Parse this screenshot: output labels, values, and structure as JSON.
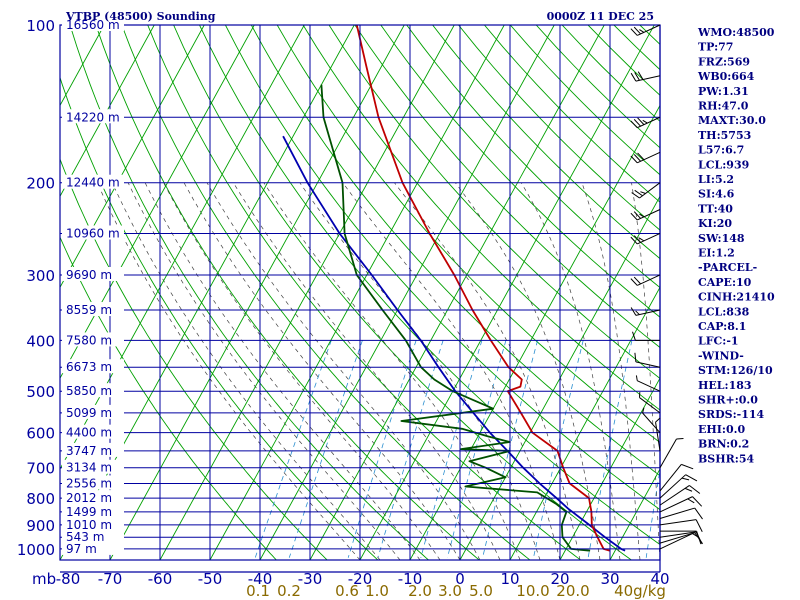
{
  "header": {
    "title": "VTBP (48500) Sounding",
    "time": "0000Z 11 DEC 25"
  },
  "indices": [
    "WMO:48500",
    "TP:77",
    "FRZ:569",
    "WB0:664",
    "PW:1.31",
    "RH:47.0",
    "MAXT:30.0",
    "TH:5753",
    "L57:6.7",
    "LCL:939",
    "LI:5.2",
    "SI:4.6",
    "TT:40",
    "KI:20",
    "SW:148",
    "EI:1.2",
    "-PARCEL-",
    "CAPE:10",
    "CINH:21410",
    "LCL:838",
    "CAP:8.1",
    "LFC:-1",
    "-WIND-",
    "STM:126/10",
    "HEL:183",
    "SHR+:0.0",
    "SRDS:-114",
    "EHI:0.0",
    "BRN:0.2",
    "BSHR:54"
  ],
  "colors": {
    "frame": "#0000a0",
    "dry_adiabat": "#00a000",
    "moist_adiabat": "#404040",
    "mixing_ratio": "#2a8fd0",
    "temperature": "#c00000",
    "dewpoint": "#005000",
    "parcel": "#0000b0",
    "wind": "#000000"
  },
  "chart_data": {
    "type": "skew-t",
    "pressure_axis": {
      "unit_label": "mb",
      "ticks": [
        100,
        200,
        300,
        400,
        500,
        600,
        700,
        800,
        900,
        1000
      ],
      "scale": "log",
      "range": [
        100,
        1050
      ]
    },
    "temperature_axis": {
      "ticks": [
        -80,
        -70,
        -60,
        -50,
        -40,
        -30,
        -20,
        -10,
        0,
        10,
        20,
        30,
        40
      ],
      "range": [
        -80,
        40
      ]
    },
    "mixing_ratio_axis": {
      "labels": [
        "0.1",
        "0.2",
        "0.6",
        "1.0",
        "2.0",
        "3.0",
        "5.0",
        "10.0",
        "20.0",
        "40g/kg"
      ]
    },
    "height_labels": [
      {
        "p": 100,
        "text": "16560 m"
      },
      {
        "p": 150,
        "text": "14220 m"
      },
      {
        "p": 200,
        "text": "12440 m"
      },
      {
        "p": 250,
        "text": "10960 m"
      },
      {
        "p": 300,
        "text": "9690 m"
      },
      {
        "p": 350,
        "text": "8559 m"
      },
      {
        "p": 400,
        "text": "7580 m"
      },
      {
        "p": 450,
        "text": "6673 m"
      },
      {
        "p": 500,
        "text": "5850 m"
      },
      {
        "p": 550,
        "text": "5099 m"
      },
      {
        "p": 600,
        "text": "4400 m"
      },
      {
        "p": 650,
        "text": "3747 m"
      },
      {
        "p": 700,
        "text": "3134 m"
      },
      {
        "p": 750,
        "text": "2556 m"
      },
      {
        "p": 800,
        "text": "2012 m"
      },
      {
        "p": 850,
        "text": "1499 m"
      },
      {
        "p": 900,
        "text": "1010 m"
      },
      {
        "p": 950,
        "text": "543 m"
      },
      {
        "p": 1000,
        "text": "97 m"
      }
    ],
    "temperature": [
      {
        "p": 100,
        "t": -79.5
      },
      {
        "p": 120,
        "t": -73.0
      },
      {
        "p": 150,
        "t": -65.0
      },
      {
        "p": 200,
        "t": -53.0
      },
      {
        "p": 250,
        "t": -42.0
      },
      {
        "p": 300,
        "t": -32.5
      },
      {
        "p": 350,
        "t": -25.0
      },
      {
        "p": 400,
        "t": -18.0
      },
      {
        "p": 450,
        "t": -11.5
      },
      {
        "p": 475,
        "t": -7.5
      },
      {
        "p": 490,
        "t": -7.0
      },
      {
        "p": 500,
        "t": -9.0
      },
      {
        "p": 550,
        "t": -4.0
      },
      {
        "p": 600,
        "t": 0.5
      },
      {
        "p": 650,
        "t": 7.5
      },
      {
        "p": 700,
        "t": 10.5
      },
      {
        "p": 750,
        "t": 13.5
      },
      {
        "p": 800,
        "t": 19.0
      },
      {
        "p": 850,
        "t": 21.0
      },
      {
        "p": 900,
        "t": 22.5
      },
      {
        "p": 950,
        "t": 25.0
      },
      {
        "p": 1000,
        "t": 27.5
      },
      {
        "p": 1008,
        "t": 29.0
      }
    ],
    "dewpoint": [
      {
        "p": 130,
        "t": -80.0
      },
      {
        "p": 150,
        "t": -76.0
      },
      {
        "p": 200,
        "t": -65.0
      },
      {
        "p": 250,
        "t": -59.0
      },
      {
        "p": 300,
        "t": -52.0
      },
      {
        "p": 350,
        "t": -43.0
      },
      {
        "p": 400,
        "t": -35.0
      },
      {
        "p": 450,
        "t": -29.0
      },
      {
        "p": 475,
        "t": -25.0
      },
      {
        "p": 500,
        "t": -20.0
      },
      {
        "p": 540,
        "t": -10.0
      },
      {
        "p": 570,
        "t": -27.0
      },
      {
        "p": 590,
        "t": -14.0
      },
      {
        "p": 610,
        "t": -8.0
      },
      {
        "p": 625,
        "t": -3.0
      },
      {
        "p": 645,
        "t": -12.0
      },
      {
        "p": 650,
        "t": -2.0
      },
      {
        "p": 680,
        "t": -9.0
      },
      {
        "p": 700,
        "t": -5.0
      },
      {
        "p": 730,
        "t": 0.0
      },
      {
        "p": 760,
        "t": -7.0
      },
      {
        "p": 780,
        "t": 8.0
      },
      {
        "p": 820,
        "t": 13.0
      },
      {
        "p": 850,
        "t": 16.0
      },
      {
        "p": 900,
        "t": 16.5
      },
      {
        "p": 950,
        "t": 18.0
      },
      {
        "p": 1000,
        "t": 21.0
      },
      {
        "p": 1008,
        "t": 25.0
      }
    ],
    "parcel": [
      {
        "p": 163,
        "t": -82.0
      },
      {
        "p": 200,
        "t": -72.0
      },
      {
        "p": 250,
        "t": -60.0
      },
      {
        "p": 300,
        "t": -49.0
      },
      {
        "p": 350,
        "t": -40.0
      },
      {
        "p": 400,
        "t": -32.0
      },
      {
        "p": 450,
        "t": -25.5
      },
      {
        "p": 500,
        "t": -19.5
      },
      {
        "p": 550,
        "t": -13.5
      },
      {
        "p": 600,
        "t": -8.0
      },
      {
        "p": 650,
        "t": -2.5
      },
      {
        "p": 700,
        "t": 2.5
      },
      {
        "p": 750,
        "t": 7.5
      },
      {
        "p": 800,
        "t": 12.5
      },
      {
        "p": 838,
        "t": 16.0
      },
      {
        "p": 900,
        "t": 22.0
      },
      {
        "p": 950,
        "t": 26.5
      },
      {
        "p": 1000,
        "t": 31.0
      },
      {
        "p": 1008,
        "t": 32.0
      }
    ],
    "wind_barbs": [
      {
        "p": 1000,
        "dir": 60,
        "spd": 5
      },
      {
        "p": 975,
        "dir": 70,
        "spd": 10
      },
      {
        "p": 950,
        "dir": 80,
        "spd": 10
      },
      {
        "p": 925,
        "dir": 90,
        "spd": 10
      },
      {
        "p": 900,
        "dir": 80,
        "spd": 10
      },
      {
        "p": 875,
        "dir": 70,
        "spd": 10
      },
      {
        "p": 850,
        "dir": 60,
        "spd": 15
      },
      {
        "p": 825,
        "dir": 50,
        "spd": 15
      },
      {
        "p": 800,
        "dir": 40,
        "spd": 15
      },
      {
        "p": 775,
        "dir": 30,
        "spd": 10
      },
      {
        "p": 700,
        "dir": 20,
        "spd": 5
      },
      {
        "p": 650,
        "dir": 340,
        "spd": 5
      },
      {
        "p": 600,
        "dir": 310,
        "spd": 5
      },
      {
        "p": 550,
        "dir": 300,
        "spd": 5
      },
      {
        "p": 500,
        "dir": 290,
        "spd": 5
      },
      {
        "p": 450,
        "dir": 280,
        "spd": 10
      },
      {
        "p": 400,
        "dir": 270,
        "spd": 10
      },
      {
        "p": 350,
        "dir": 260,
        "spd": 15
      },
      {
        "p": 300,
        "dir": 250,
        "spd": 20
      },
      {
        "p": 250,
        "dir": 250,
        "spd": 25
      },
      {
        "p": 225,
        "dir": 250,
        "spd": 25
      },
      {
        "p": 200,
        "dir": 240,
        "spd": 25
      },
      {
        "p": 175,
        "dir": 250,
        "spd": 30
      },
      {
        "p": 150,
        "dir": 250,
        "spd": 35
      },
      {
        "p": 125,
        "dir": 260,
        "spd": 30
      },
      {
        "p": 100,
        "dir": 250,
        "spd": 25
      }
    ]
  }
}
